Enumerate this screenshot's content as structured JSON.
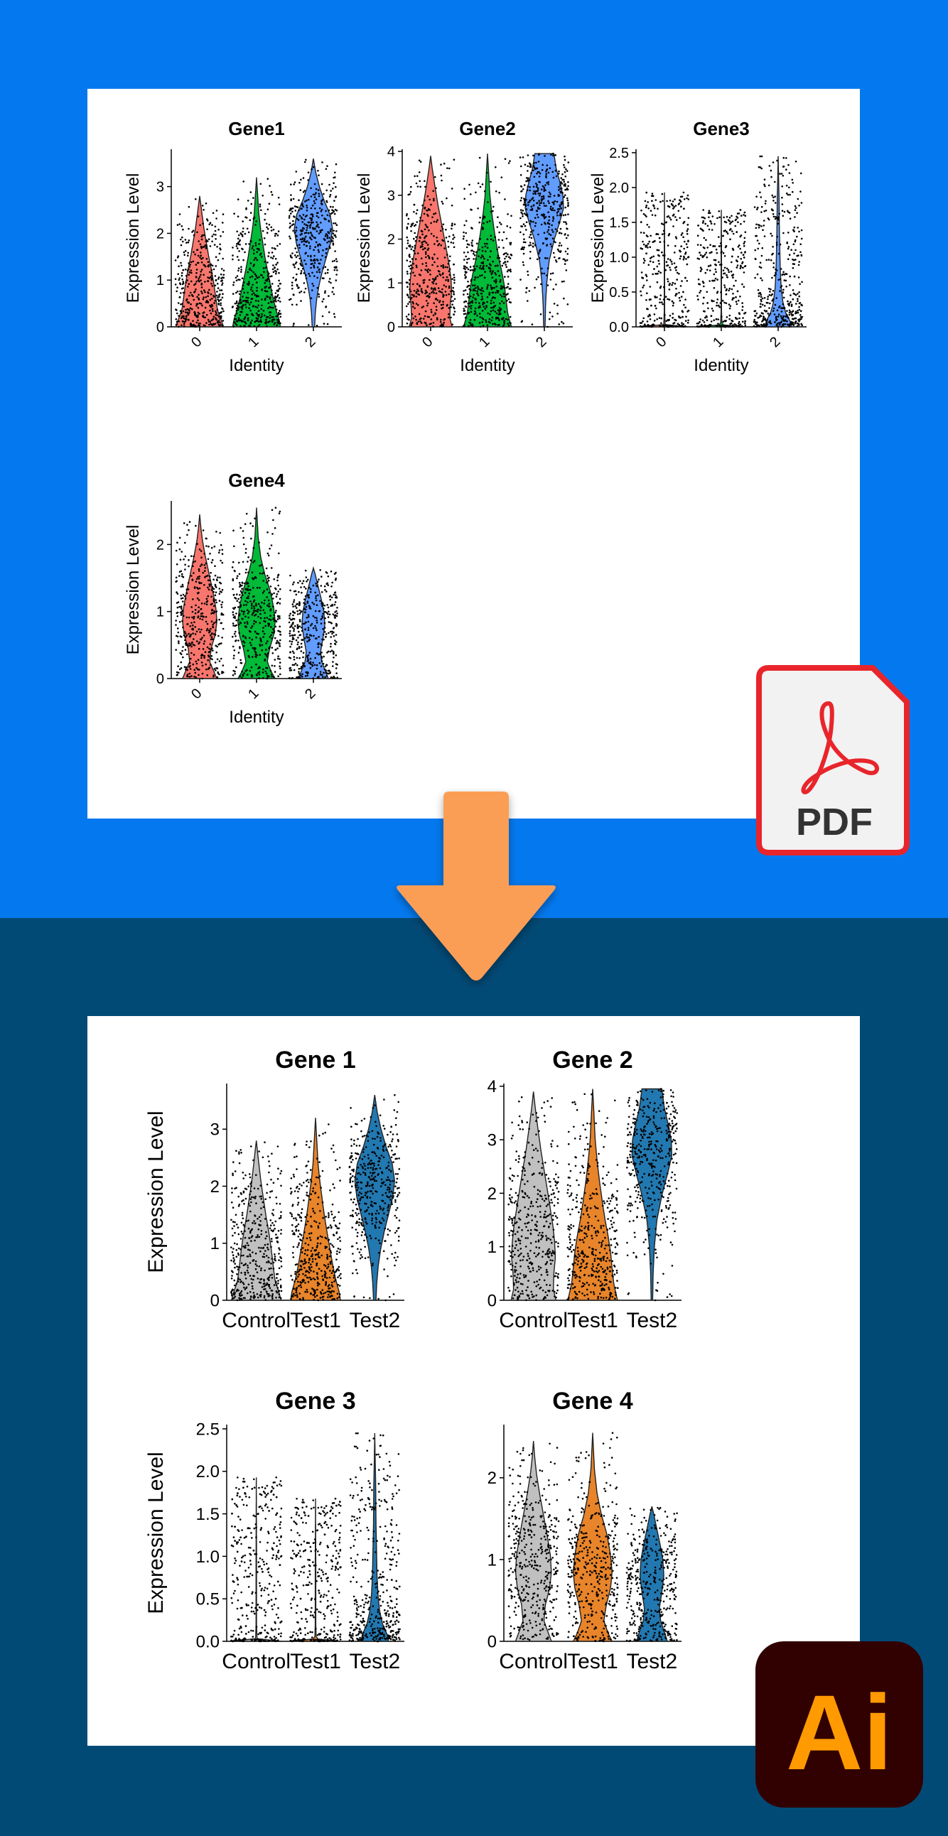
{
  "colors": {
    "top_background": "#0479ef",
    "bottom_background": "#024a76",
    "arrow": "#fb9e55",
    "pdf_badge_border": "#e8252b",
    "pdf_badge_fill": "#f2f2f2",
    "pdf_symbol": "#e8252b",
    "ai_badge_fill": "#310000",
    "ai_text": "#ff9a00"
  },
  "badges": {
    "pdf_label": "PDF",
    "ai_label": "Ai"
  },
  "top_panel": {
    "y_axis_label": "Expression Level",
    "x_axis_label": "Identity",
    "category_colors": [
      "#f8766d",
      "#00ba38",
      "#619cff"
    ],
    "plots": [
      {
        "title": "Gene1",
        "ylim": [
          0,
          3.8
        ],
        "ticks": [
          0,
          1,
          2,
          3
        ],
        "tick_labels": [
          "0",
          "1",
          "2",
          "3"
        ]
      },
      {
        "title": "Gene2",
        "ylim": [
          0,
          4.05
        ],
        "ticks": [
          0,
          1,
          2,
          3,
          4
        ],
        "tick_labels": [
          "0",
          "1",
          "2",
          "3",
          "4"
        ]
      },
      {
        "title": "Gene3",
        "ylim": [
          0,
          2.55
        ],
        "ticks": [
          0,
          0.5,
          1,
          1.5,
          2,
          2.5
        ],
        "tick_labels": [
          "0.0",
          "0.5",
          "1.0",
          "1.5",
          "2.0",
          "2.5"
        ]
      },
      {
        "title": "Gene4",
        "ylim": [
          0,
          2.65
        ],
        "ticks": [
          0,
          1,
          2
        ],
        "tick_labels": [
          "0",
          "1",
          "2"
        ]
      }
    ]
  },
  "bottom_panel": {
    "y_axis_label": "Expression Level",
    "category_colors": [
      "#c0c0c0",
      "#e8842a",
      "#2278b0"
    ],
    "plots": [
      {
        "title": "Gene 1",
        "ylim": [
          0,
          3.8
        ],
        "ticks": [
          0,
          1,
          2,
          3
        ],
        "tick_labels": [
          "0",
          "1",
          "2",
          "3"
        ]
      },
      {
        "title": "Gene 2",
        "ylim": [
          0,
          4.05
        ],
        "ticks": [
          0,
          1,
          2,
          3,
          4
        ],
        "tick_labels": [
          "0",
          "1",
          "2",
          "3",
          "4"
        ]
      },
      {
        "title": "Gene 3",
        "ylim": [
          0,
          2.55
        ],
        "ticks": [
          0,
          0.5,
          1,
          1.5,
          2,
          2.5
        ],
        "tick_labels": [
          "0.0",
          "0.5",
          "1.0",
          "1.5",
          "2.0",
          "2.5"
        ]
      },
      {
        "title": "Gene 4",
        "ylim": [
          0,
          2.65
        ],
        "ticks": [
          0,
          1,
          2
        ],
        "tick_labels": [
          "0",
          "1",
          "2"
        ]
      }
    ]
  },
  "chart_data": [
    {
      "type": "violin",
      "title": "Gene1",
      "xlabel": "Identity",
      "ylabel": "Expression Level",
      "categories": [
        "0",
        "1",
        "2"
      ],
      "ylim": [
        0,
        3.8
      ],
      "series": [
        {
          "category": "0",
          "max": 2.8,
          "density": [
            [
              0,
              1.0
            ],
            [
              0.15,
              0.9
            ],
            [
              0.35,
              0.75
            ],
            [
              0.6,
              0.68
            ],
            [
              0.9,
              0.6
            ],
            [
              1.2,
              0.5
            ],
            [
              1.5,
              0.38
            ],
            [
              1.8,
              0.28
            ],
            [
              2.1,
              0.18
            ],
            [
              2.4,
              0.1
            ],
            [
              2.6,
              0.05
            ],
            [
              2.8,
              0.0
            ]
          ]
        },
        {
          "category": "1",
          "max": 3.2,
          "density": [
            [
              0,
              1.0
            ],
            [
              0.15,
              0.95
            ],
            [
              0.35,
              0.82
            ],
            [
              0.6,
              0.7
            ],
            [
              0.9,
              0.58
            ],
            [
              1.2,
              0.46
            ],
            [
              1.5,
              0.35
            ],
            [
              1.8,
              0.26
            ],
            [
              2.1,
              0.17
            ],
            [
              2.4,
              0.1
            ],
            [
              2.8,
              0.05
            ],
            [
              3.2,
              0.0
            ]
          ]
        },
        {
          "category": "2",
          "max": 3.6,
          "density": [
            [
              0,
              0.05
            ],
            [
              0.3,
              0.08
            ],
            [
              0.6,
              0.14
            ],
            [
              0.9,
              0.24
            ],
            [
              1.2,
              0.38
            ],
            [
              1.5,
              0.55
            ],
            [
              1.8,
              0.72
            ],
            [
              2.1,
              0.8
            ],
            [
              2.4,
              0.7
            ],
            [
              2.7,
              0.45
            ],
            [
              3.0,
              0.25
            ],
            [
              3.3,
              0.1
            ],
            [
              3.6,
              0.0
            ]
          ]
        }
      ]
    },
    {
      "type": "violin",
      "title": "Gene2",
      "xlabel": "Identity",
      "ylabel": "Expression Level",
      "categories": [
        "0",
        "1",
        "2"
      ],
      "ylim": [
        0,
        4.05
      ],
      "series": [
        {
          "category": "0",
          "max": 3.9,
          "density": [
            [
              0,
              0.9
            ],
            [
              0.2,
              0.8
            ],
            [
              0.5,
              0.82
            ],
            [
              0.8,
              0.88
            ],
            [
              1.1,
              0.85
            ],
            [
              1.4,
              0.78
            ],
            [
              1.7,
              0.68
            ],
            [
              2.0,
              0.58
            ],
            [
              2.4,
              0.44
            ],
            [
              2.8,
              0.3
            ],
            [
              3.2,
              0.18
            ],
            [
              3.6,
              0.07
            ],
            [
              3.9,
              0.0
            ]
          ]
        },
        {
          "category": "1",
          "max": 3.95,
          "density": [
            [
              0,
              1.0
            ],
            [
              0.3,
              0.85
            ],
            [
              0.6,
              0.78
            ],
            [
              0.9,
              0.72
            ],
            [
              1.2,
              0.62
            ],
            [
              1.5,
              0.5
            ],
            [
              1.8,
              0.4
            ],
            [
              2.2,
              0.28
            ],
            [
              2.6,
              0.18
            ],
            [
              3.0,
              0.1
            ],
            [
              3.5,
              0.05
            ],
            [
              3.95,
              0.0
            ]
          ]
        },
        {
          "category": "2",
          "max": 3.95,
          "density": [
            [
              0,
              0.03
            ],
            [
              0.5,
              0.05
            ],
            [
              1.0,
              0.1
            ],
            [
              1.5,
              0.2
            ],
            [
              2.0,
              0.42
            ],
            [
              2.4,
              0.65
            ],
            [
              2.7,
              0.8
            ],
            [
              3.0,
              0.78
            ],
            [
              3.3,
              0.65
            ],
            [
              3.6,
              0.5
            ],
            [
              3.95,
              0.4
            ]
          ]
        }
      ]
    },
    {
      "type": "violin",
      "title": "Gene3",
      "xlabel": "Identity",
      "ylabel": "Expression Level",
      "categories": [
        "0",
        "1",
        "2"
      ],
      "ylim": [
        0,
        2.55
      ],
      "series": [
        {
          "category": "0",
          "max": 1.93,
          "density": [
            [
              0,
              1.0
            ],
            [
              0.01,
              0.7
            ],
            [
              0.03,
              0.03
            ],
            [
              0.2,
              0.01
            ],
            [
              1.0,
              0.01
            ],
            [
              1.93,
              0.0
            ]
          ]
        },
        {
          "category": "1",
          "max": 1.68,
          "density": [
            [
              0,
              1.0
            ],
            [
              0.01,
              0.7
            ],
            [
              0.03,
              0.03
            ],
            [
              0.2,
              0.01
            ],
            [
              1.0,
              0.01
            ],
            [
              1.68,
              0.0
            ]
          ]
        },
        {
          "category": "2",
          "max": 2.45,
          "density": [
            [
              0,
              0.55
            ],
            [
              0.08,
              0.5
            ],
            [
              0.2,
              0.32
            ],
            [
              0.35,
              0.2
            ],
            [
              0.55,
              0.13
            ],
            [
              0.8,
              0.09
            ],
            [
              1.1,
              0.07
            ],
            [
              1.4,
              0.05
            ],
            [
              1.8,
              0.04
            ],
            [
              2.1,
              0.02
            ],
            [
              2.45,
              0.0
            ]
          ]
        }
      ]
    },
    {
      "type": "violin",
      "title": "Gene4",
      "xlabel": "Identity",
      "ylabel": "Expression Level",
      "categories": [
        "0",
        "1",
        "2"
      ],
      "ylim": [
        0,
        2.65
      ],
      "series": [
        {
          "category": "0",
          "max": 2.45,
          "density": [
            [
              0,
              0.72
            ],
            [
              0.1,
              0.6
            ],
            [
              0.25,
              0.42
            ],
            [
              0.45,
              0.48
            ],
            [
              0.65,
              0.65
            ],
            [
              0.85,
              0.72
            ],
            [
              1.05,
              0.68
            ],
            [
              1.3,
              0.55
            ],
            [
              1.55,
              0.4
            ],
            [
              1.8,
              0.25
            ],
            [
              2.05,
              0.12
            ],
            [
              2.25,
              0.05
            ],
            [
              2.45,
              0.0
            ]
          ]
        },
        {
          "category": "1",
          "max": 2.55,
          "density": [
            [
              0,
              0.78
            ],
            [
              0.1,
              0.62
            ],
            [
              0.25,
              0.45
            ],
            [
              0.45,
              0.55
            ],
            [
              0.65,
              0.72
            ],
            [
              0.85,
              0.78
            ],
            [
              1.05,
              0.72
            ],
            [
              1.3,
              0.58
            ],
            [
              1.55,
              0.35
            ],
            [
              1.8,
              0.18
            ],
            [
              2.1,
              0.07
            ],
            [
              2.55,
              0.0
            ]
          ]
        },
        {
          "category": "2",
          "max": 1.65,
          "density": [
            [
              0,
              0.62
            ],
            [
              0.1,
              0.52
            ],
            [
              0.25,
              0.35
            ],
            [
              0.4,
              0.3
            ],
            [
              0.6,
              0.4
            ],
            [
              0.8,
              0.48
            ],
            [
              1.0,
              0.44
            ],
            [
              1.2,
              0.32
            ],
            [
              1.4,
              0.18
            ],
            [
              1.55,
              0.08
            ],
            [
              1.65,
              0.0
            ]
          ]
        }
      ]
    },
    {
      "type": "violin",
      "title": "Gene 1",
      "ylabel": "Expression Level",
      "categories": [
        "Control",
        "Test1",
        "Test2"
      ],
      "same_data_as": "Gene1"
    },
    {
      "type": "violin",
      "title": "Gene 2",
      "categories": [
        "Control",
        "Test1",
        "Test2"
      ],
      "same_data_as": "Gene2"
    },
    {
      "type": "violin",
      "title": "Gene 3",
      "ylabel": "Expression Level",
      "categories": [
        "Control",
        "Test1",
        "Test2"
      ],
      "same_data_as": "Gene3"
    },
    {
      "type": "violin",
      "title": "Gene 4",
      "categories": [
        "Control",
        "Test1",
        "Test2"
      ],
      "same_data_as": "Gene4"
    }
  ]
}
